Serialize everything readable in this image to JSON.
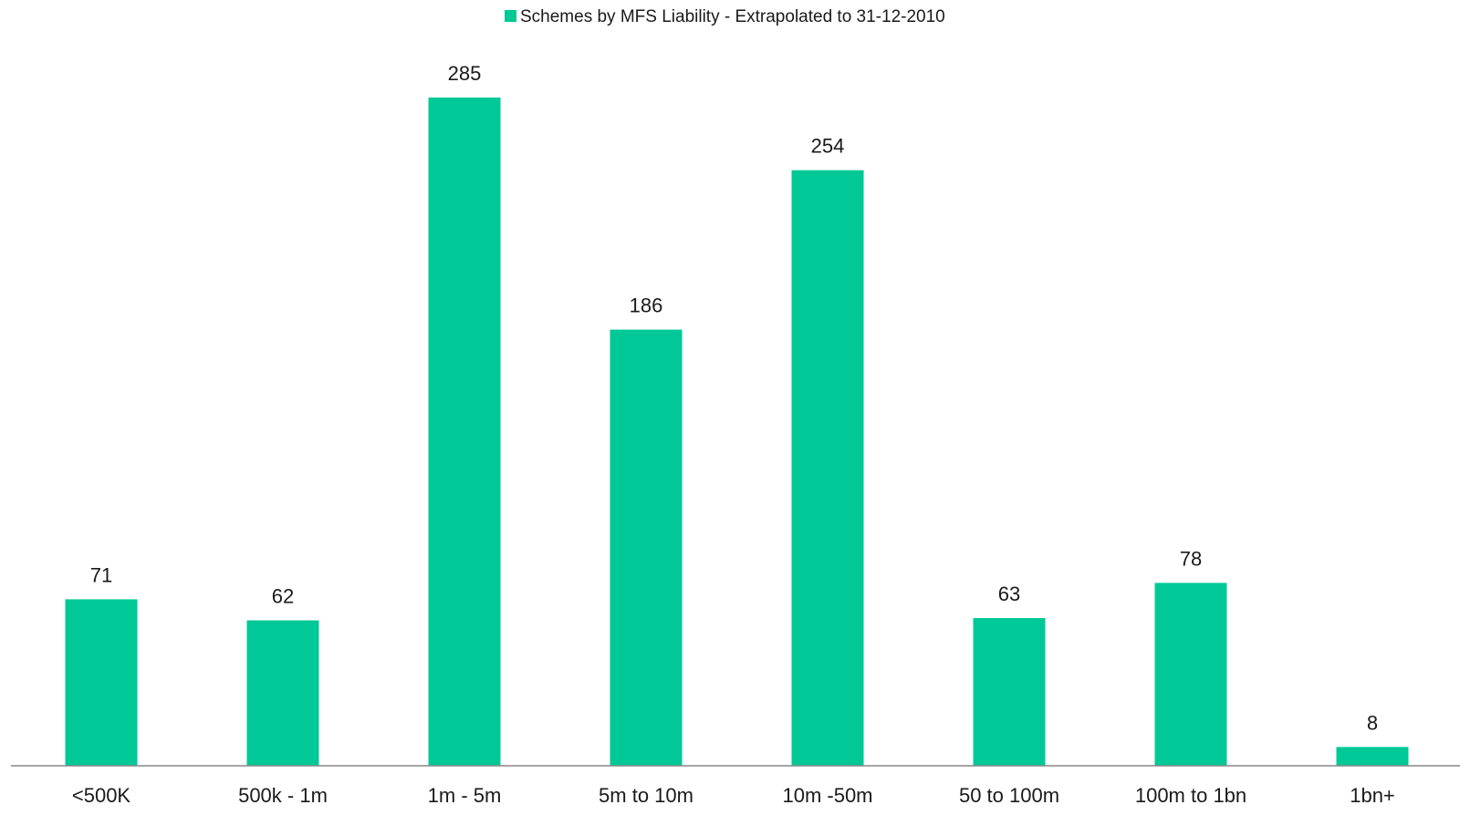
{
  "colors": {
    "bar": "#00C896",
    "axis": "#888888",
    "text": "#1a1a1a"
  },
  "legend": {
    "swatch_color": "#00C896",
    "label": "Schemes by MFS Liability - Extrapolated to 31-12-2010"
  },
  "chart_data": {
    "type": "bar",
    "categories": [
      "<500K",
      "500k - 1m",
      "1m - 5m",
      "5m to 10m",
      "10m -50m",
      "50 to 100m",
      "100m to 1bn",
      "1bn+"
    ],
    "series": [
      {
        "name": "Schemes by MFS Liability - Extrapolated to 31-12-2010",
        "values": [
          71,
          62,
          285,
          186,
          254,
          63,
          78,
          8
        ]
      }
    ],
    "title": "",
    "xlabel": "",
    "ylabel": "",
    "ylim": [
      0,
      285
    ],
    "grid": false,
    "legend_position": "top-center",
    "data_labels": true
  }
}
